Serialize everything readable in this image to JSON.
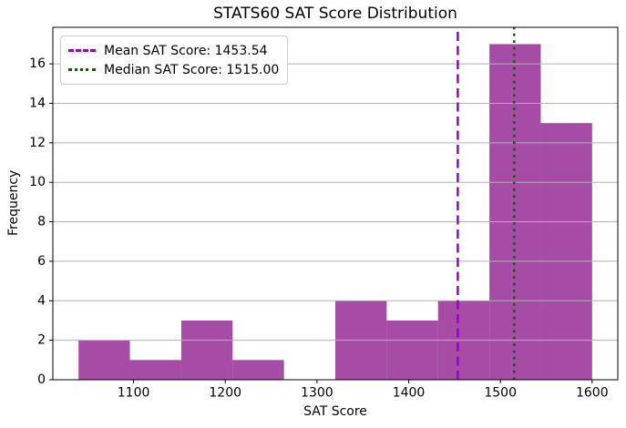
{
  "chart_data": {
    "type": "bar",
    "subtype": "histogram",
    "title": "STATS60 SAT Score Distribution",
    "xlabel": "SAT Score",
    "ylabel": "Frequency",
    "bin_edges": [
      1040,
      1096,
      1152,
      1208,
      1264,
      1320,
      1376,
      1432,
      1488,
      1544,
      1600
    ],
    "counts": [
      2,
      1,
      3,
      1,
      0,
      4,
      3,
      4,
      17,
      13
    ],
    "bar_color": "#800080",
    "bar_opacity": 0.7,
    "xlim": [
      1012,
      1628
    ],
    "ylim": [
      0,
      17.85
    ],
    "xticks": [
      1100,
      1200,
      1300,
      1400,
      1500,
      1600
    ],
    "yticks": [
      0,
      2,
      4,
      6,
      8,
      10,
      12,
      14,
      16
    ],
    "grid": "y",
    "grid_color": "#b0b0b0",
    "spine_color": "#000000",
    "legend_position": "upper-left",
    "reference_lines": [
      {
        "value": 1453.54,
        "label": "Mean SAT Score: 1453.54",
        "color": "#9400d3",
        "style": "dashed"
      },
      {
        "value": 1515.0,
        "label": "Median SAT Score: 1515.00",
        "color": "#006400",
        "style": "dotted"
      }
    ]
  }
}
